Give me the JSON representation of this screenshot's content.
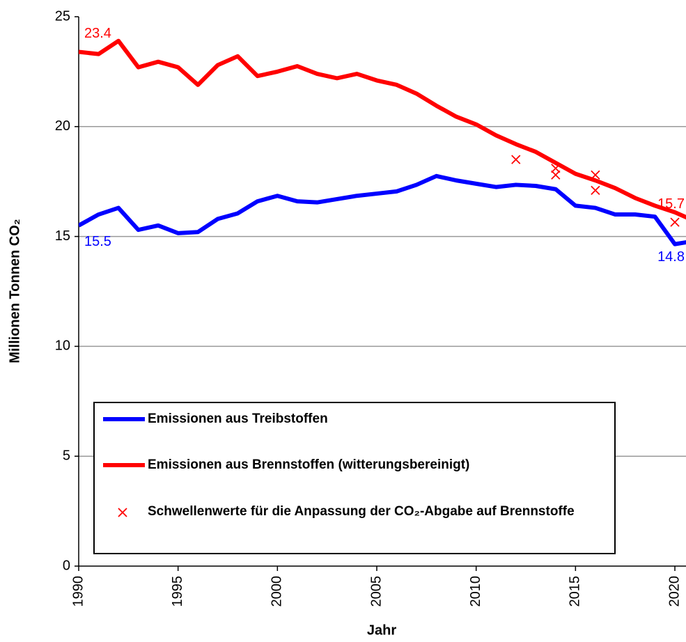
{
  "chart_data": {
    "type": "line",
    "x_label": "Jahr",
    "y_label": "Millionen Tonnen CO₂",
    "x": [
      1990,
      1991,
      1992,
      1993,
      1994,
      1995,
      1996,
      1997,
      1998,
      1999,
      2000,
      2001,
      2002,
      2003,
      2004,
      2005,
      2006,
      2007,
      2008,
      2009,
      2010,
      2011,
      2012,
      2013,
      2014,
      2015,
      2016,
      2017,
      2018,
      2019,
      2020,
      2021
    ],
    "series": [
      {
        "name": "Emissionen aus Treibstoffen",
        "color": "#0000ff",
        "values": [
          15.5,
          16.0,
          16.3,
          15.3,
          15.5,
          15.15,
          15.2,
          15.8,
          16.05,
          16.6,
          16.85,
          16.6,
          16.55,
          16.7,
          16.85,
          16.95,
          17.05,
          17.35,
          17.75,
          17.55,
          17.4,
          17.25,
          17.35,
          17.3,
          17.15,
          16.4,
          16.3,
          16.0,
          16.0,
          15.9,
          14.65,
          14.8
        ]
      },
      {
        "name": "Emissionen aus Brennstoffen (witterungsbereinigt)",
        "color": "#ff0000",
        "values": [
          23.4,
          23.3,
          23.9,
          22.7,
          22.95,
          22.7,
          21.9,
          22.8,
          23.2,
          22.3,
          22.5,
          22.75,
          22.4,
          22.2,
          22.4,
          22.1,
          21.9,
          21.5,
          20.95,
          20.45,
          20.1,
          19.6,
          19.2,
          18.85,
          18.35,
          17.85,
          17.55,
          17.2,
          16.75,
          16.4,
          16.1,
          15.7
        ]
      },
      {
        "name": "Schwellenwerte für die Anpassung  der CO₂-Abgabe auf Brennstoffe",
        "color": "#ff0000",
        "marker": "x",
        "x": [
          2012,
          2014,
          2014,
          2016,
          2016,
          2020
        ],
        "values": [
          18.5,
          18.1,
          17.8,
          17.8,
          17.1,
          15.65
        ]
      }
    ],
    "xlim": [
      1990,
      2020.56
    ],
    "xticks": [
      1990,
      1995,
      2000,
      2005,
      2010,
      2015,
      2020
    ],
    "ylim": [
      0,
      25
    ],
    "yticks": [
      0,
      5,
      10,
      15,
      20,
      25
    ],
    "grid": true
  }
}
